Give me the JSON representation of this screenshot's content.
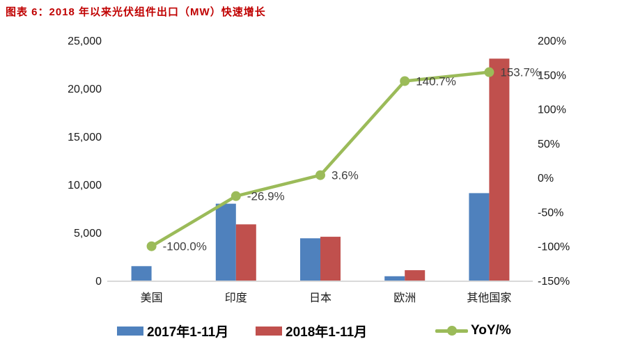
{
  "title": "图表 6：2018 年以来光伏组件出口（MW）快速增长",
  "title_color": "#c00000",
  "chart_data": {
    "type": "bar+line",
    "title": "2018 年以来光伏组件出口（MW）快速增长",
    "categories": [
      "美国",
      "印度",
      "日本",
      "欧洲",
      "其他国家"
    ],
    "bar_series": [
      {
        "name": "2017年1-11月",
        "color": "#4f81bd",
        "values": [
          1500,
          8000,
          4400,
          450,
          9100
        ]
      },
      {
        "name": "2018年1-11月",
        "color": "#c0504d",
        "values": [
          0,
          5850,
          4560,
          1080,
          23100
        ]
      }
    ],
    "line_series": {
      "name": "YoY/%",
      "color": "#9bbb59",
      "values": [
        -100.0,
        -26.9,
        3.6,
        140.7,
        153.7
      ],
      "point_labels": [
        "-100.0%",
        "-26.9%",
        "3.6%",
        "140.7%",
        "153.7%"
      ]
    },
    "left_axis": {
      "min": 0,
      "max": 25000,
      "step": 5000,
      "tick_labels": [
        "0",
        "5,000",
        "10,000",
        "15,000",
        "20,000",
        "25,000"
      ]
    },
    "right_axis": {
      "min": -150,
      "max": 200,
      "step": 50,
      "tick_labels": [
        "-150%",
        "-100%",
        "-50%",
        "0%",
        "50%",
        "100%",
        "150%",
        "200%"
      ]
    },
    "grid": false,
    "legend_position": "bottom",
    "axis_line_color": "#d9d9d9",
    "label_color": "#404040",
    "tick_color": "#1a1a1a"
  },
  "legend": {
    "items": [
      {
        "label": "2017年1-11月",
        "color": "#4f81bd",
        "type": "bar"
      },
      {
        "label": "2018年1-11月",
        "color": "#c0504d",
        "type": "bar"
      },
      {
        "label": "YoY/%",
        "color": "#9bbb59",
        "type": "line"
      }
    ]
  }
}
